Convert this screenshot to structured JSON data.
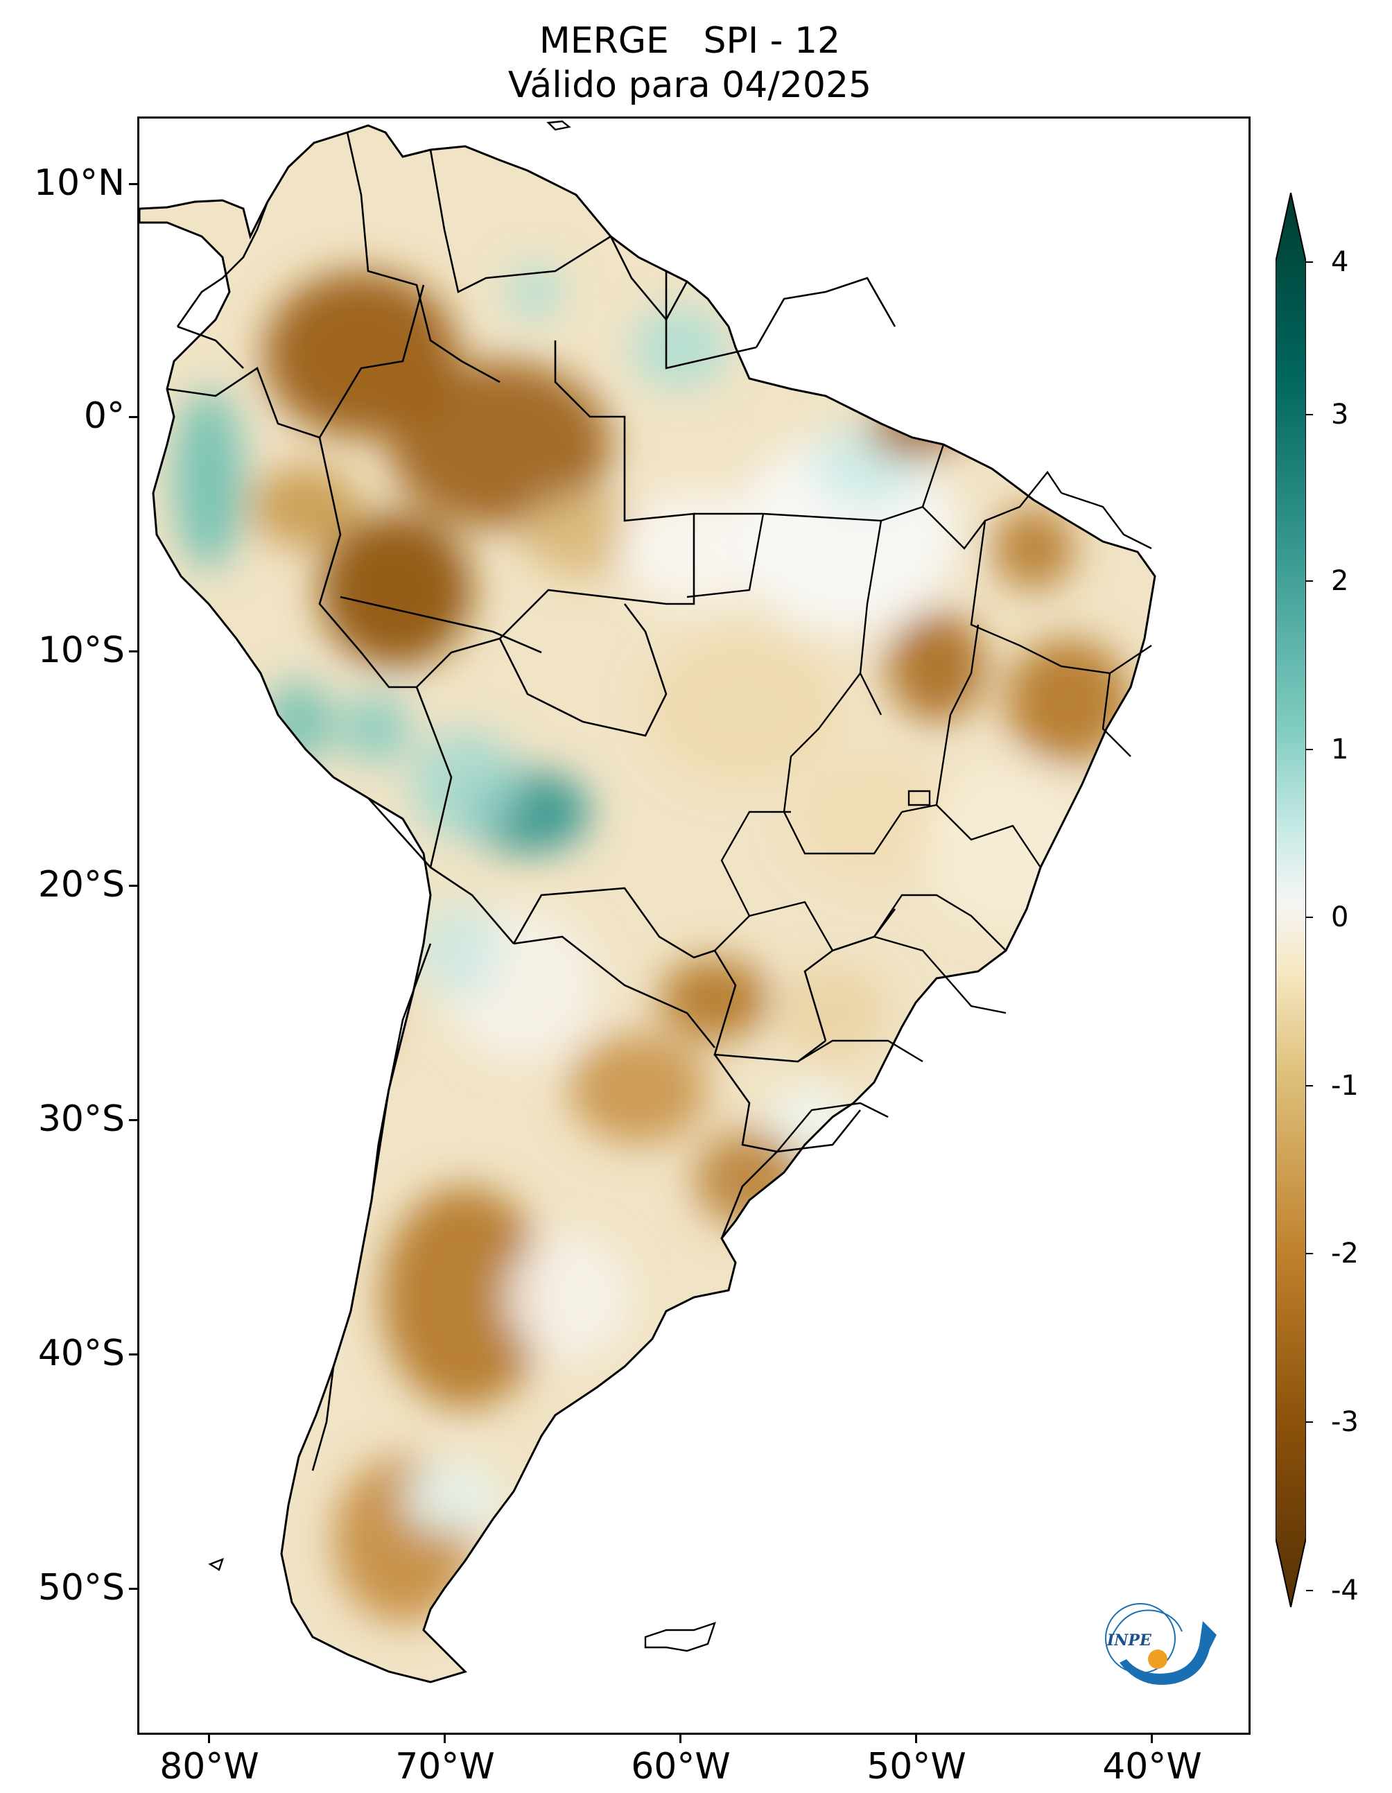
{
  "map": {
    "title_line1": "MERGE   SPI - 12",
    "title_line2": "Válido para 04/2025",
    "lat_labels": [
      "10°N",
      "0°",
      "10°S",
      "20°S",
      "30°S",
      "40°S",
      "50°S"
    ],
    "lon_labels": [
      "80°W",
      "70°W",
      "60°W",
      "50°W",
      "40°W"
    ],
    "colorbar_labels": [
      "4",
      "3",
      "2",
      "1",
      "0",
      "-1",
      "-2",
      "-3",
      "-4"
    ],
    "colorbar_values": [
      4,
      3,
      2,
      1,
      0,
      -1,
      -2,
      -3,
      -4
    ],
    "colors": {
      "extreme_dry": "#543005",
      "severe_dry": "#8c510a",
      "moderate_dry": "#bf812d",
      "mild_dry": "#dfc27d",
      "near_normal_dry": "#f6e8c3",
      "normal": "#f5f5f5",
      "near_normal_wet": "#c7eae5",
      "mild_wet": "#80cdc1",
      "moderate_wet": "#35978f",
      "severe_wet": "#01665e",
      "extreme_wet": "#003c30",
      "borders": "#000000"
    },
    "logo_text": "INPE"
  }
}
